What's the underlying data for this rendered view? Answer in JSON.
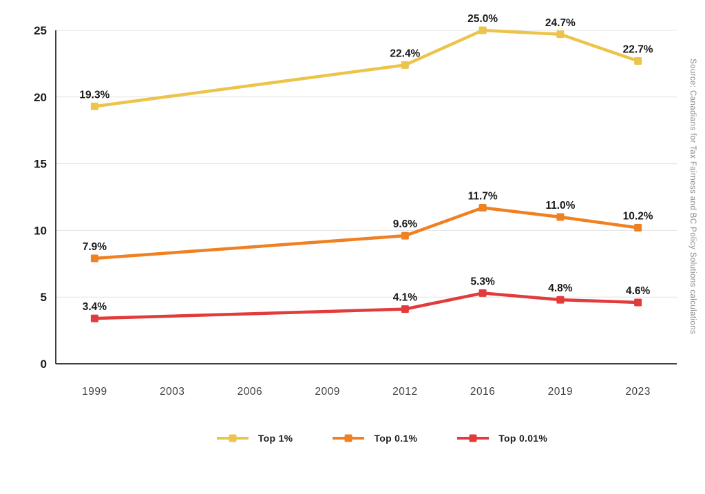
{
  "chart_data": {
    "type": "line",
    "title": "",
    "xlabel": "",
    "ylabel": "",
    "categories": [
      "1999",
      "2003",
      "2006",
      "2009",
      "2012",
      "2016",
      "2019",
      "2023"
    ],
    "y_ticks": [
      0,
      5,
      10,
      15,
      20,
      25
    ],
    "ylim": [
      0,
      25
    ],
    "grid": "horizontal",
    "legend_position": "bottom",
    "series": [
      {
        "name": "Top 1%",
        "color": "#EDC44B",
        "points": [
          {
            "x": "1999",
            "y": 19.3,
            "label": "19.3%"
          },
          {
            "x": "2012",
            "y": 22.4,
            "label": "22.4%"
          },
          {
            "x": "2016",
            "y": 25.0,
            "label": "25.0%"
          },
          {
            "x": "2019",
            "y": 24.7,
            "label": "24.7%"
          },
          {
            "x": "2023",
            "y": 22.7,
            "label": "22.7%"
          }
        ]
      },
      {
        "name": "Top 0.1%",
        "color": "#EF8123",
        "points": [
          {
            "x": "1999",
            "y": 7.9,
            "label": "7.9%"
          },
          {
            "x": "2012",
            "y": 9.6,
            "label": "9.6%"
          },
          {
            "x": "2016",
            "y": 11.7,
            "label": "11.7%"
          },
          {
            "x": "2019",
            "y": 11.0,
            "label": "11.0%"
          },
          {
            "x": "2023",
            "y": 10.2,
            "label": "10.2%"
          }
        ]
      },
      {
        "name": "Top 0.01%",
        "color": "#E23B3B",
        "points": [
          {
            "x": "1999",
            "y": 3.4,
            "label": "3.4%"
          },
          {
            "x": "2012",
            "y": 4.1,
            "label": "4.1%"
          },
          {
            "x": "2016",
            "y": 5.3,
            "label": "5.3%"
          },
          {
            "x": "2019",
            "y": 4.8,
            "label": "4.8%"
          },
          {
            "x": "2023",
            "y": 4.6,
            "label": "4.6%"
          }
        ]
      }
    ],
    "style": {
      "axis_color": "#3f3f3f",
      "grid_color": "#e3e3e3",
      "tick_label_color": "#1a1a1a",
      "x_tick_label_color": "#414141",
      "data_label_color": "#191919"
    }
  },
  "source_note": "Source: Canadians for Tax Fairness and BC Policy Solutions calculations"
}
